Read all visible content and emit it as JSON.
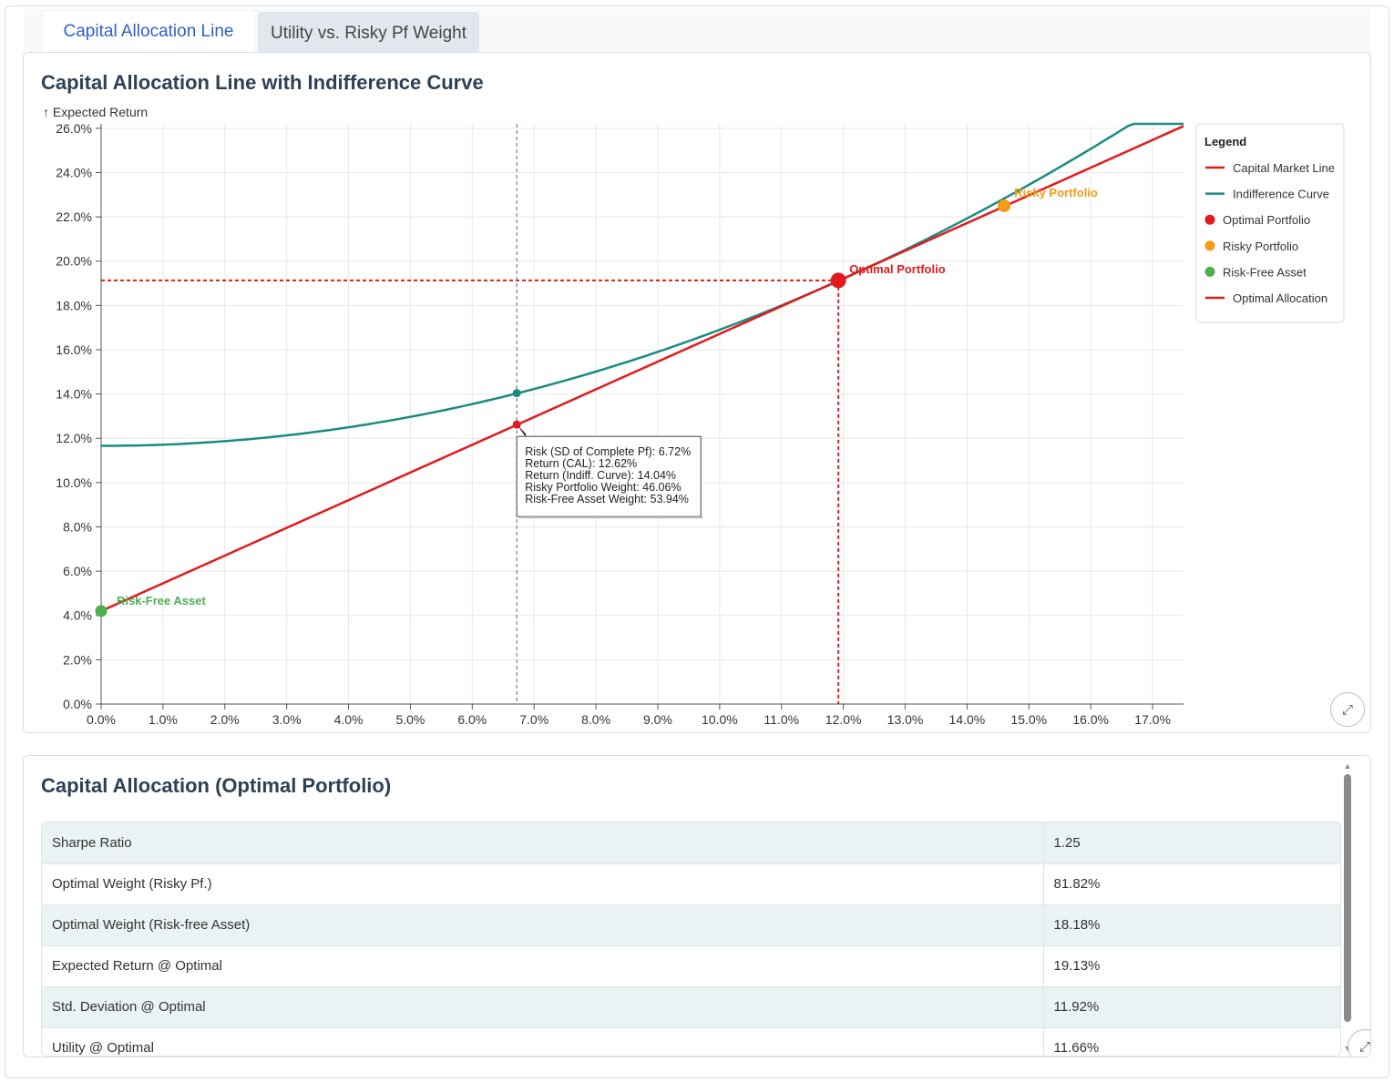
{
  "tabs": [
    {
      "label": "Capital Allocation Line",
      "active": true
    },
    {
      "label": "Utility vs. Risky Pf Weight",
      "active": false
    }
  ],
  "chart_card": {
    "title": "Capital Allocation Line with Indifference Curve",
    "expand_icon": "expand-icon"
  },
  "chart_data": {
    "type": "line",
    "title": "Capital Allocation Line with Indifference Curve",
    "ylabel": "↑ Expected Return",
    "xlabel": "",
    "xlim": [
      0,
      17.5
    ],
    "ylim": [
      0,
      26.2
    ],
    "x_ticks": [
      "0.0%",
      "1.0%",
      "2.0%",
      "3.0%",
      "4.0%",
      "5.0%",
      "6.0%",
      "7.0%",
      "8.0%",
      "9.0%",
      "10.0%",
      "11.0%",
      "12.0%",
      "13.0%",
      "14.0%",
      "15.0%",
      "16.0%",
      "17.0%"
    ],
    "y_ticks": [
      "0.0%",
      "2.0%",
      "4.0%",
      "6.0%",
      "8.0%",
      "10.0%",
      "12.0%",
      "14.0%",
      "16.0%",
      "18.0%",
      "20.0%",
      "22.0%",
      "24.0%",
      "26.0%"
    ],
    "grid": true,
    "series": [
      {
        "name": "Capital Market Line",
        "color": "#e31a1c",
        "kind": "line",
        "x": [
          0,
          17.5
        ],
        "y": [
          4.2,
          26.1
        ]
      },
      {
        "name": "Indifference Curve",
        "color": "#1a8c82",
        "kind": "curve",
        "x": [
          0,
          2,
          4,
          6,
          6.72,
          8,
          10,
          11.92,
          14,
          16,
          17.5
        ],
        "y": [
          11.66,
          11.86,
          12.47,
          13.48,
          14.04,
          15.04,
          17.04,
          19.13,
          22.3,
          25.4,
          27.8
        ]
      },
      {
        "name": "Optimal Portfolio",
        "color": "#e31a1c",
        "kind": "point",
        "x": [
          11.92
        ],
        "y": [
          19.13
        ]
      },
      {
        "name": "Risky Portfolio",
        "color": "#f59b14",
        "kind": "point",
        "x": [
          14.6
        ],
        "y": [
          22.5
        ]
      },
      {
        "name": "Risk-Free Asset",
        "color": "#4caf50",
        "kind": "point",
        "x": [
          0
        ],
        "y": [
          4.2
        ]
      },
      {
        "name": "Optimal Allocation",
        "color": "#e31a1c",
        "kind": "guides",
        "x": [
          11.92
        ],
        "y": [
          19.13
        ]
      }
    ],
    "annotations": [
      {
        "text": "Optimal Portfolio",
        "x": 11.92,
        "y": 19.13,
        "color": "#e31a1c"
      },
      {
        "text": "Risky Portfolio",
        "x": 14.6,
        "y": 22.5,
        "color": "#f59b14"
      },
      {
        "text": "Risk-Free Asset",
        "x": 0,
        "y": 4.2,
        "color": "#4caf50"
      }
    ],
    "legend": {
      "title": "Legend",
      "position": "top-right",
      "entries": [
        {
          "label": "Capital Market Line",
          "color": "#e31a1c",
          "shape": "line"
        },
        {
          "label": "Indifference Curve",
          "color": "#1a8c82",
          "shape": "line"
        },
        {
          "label": "Optimal Portfolio",
          "color": "#e31a1c",
          "shape": "dot"
        },
        {
          "label": "Risky Portfolio",
          "color": "#f59b14",
          "shape": "dot"
        },
        {
          "label": "Risk-Free Asset",
          "color": "#4caf50",
          "shape": "dot"
        },
        {
          "label": "Optimal Allocation",
          "color": "#e31a1c",
          "shape": "line"
        }
      ]
    },
    "hover": {
      "x": 6.72,
      "cal_y": 12.62,
      "indiff_y": 14.04,
      "tooltip_lines": [
        "Risk (SD of Complete Pf): 6.72%",
        "Return (CAL): 12.62%",
        "Return (Indiff. Curve): 14.04%",
        "Risky Portfolio Weight: 46.06%",
        "Risk-Free Asset Weight: 53.94%"
      ]
    }
  },
  "table_card": {
    "title": "Capital Allocation (Optimal Portfolio)",
    "rows": [
      {
        "label": "Sharpe Ratio",
        "value": "1.25"
      },
      {
        "label": "Optimal Weight (Risky Pf.)",
        "value": "81.82%"
      },
      {
        "label": "Optimal Weight (Risk-free Asset)",
        "value": "18.18%"
      },
      {
        "label": "Expected Return @ Optimal",
        "value": "19.13%"
      },
      {
        "label": "Std. Deviation @ Optimal",
        "value": "11.92%"
      },
      {
        "label": "Utility @ Optimal",
        "value": "11.66%"
      }
    ]
  }
}
